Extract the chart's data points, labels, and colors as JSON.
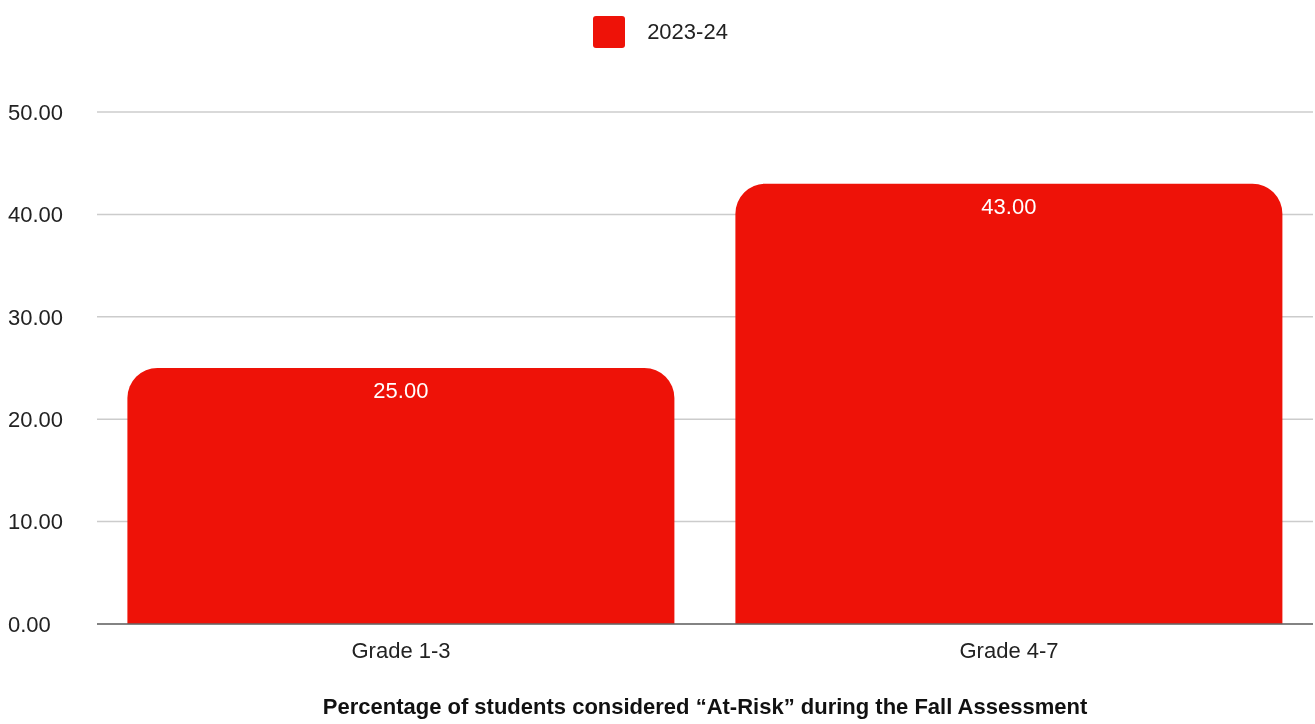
{
  "chart_data": {
    "type": "bar",
    "xlabel": "Percentage of students considered “At-Risk” during the Fall Assessment",
    "categories": [
      "Grade 1-3",
      "Grade 4-7"
    ],
    "series": [
      {
        "name": "2023-24",
        "color": "#ee1208",
        "values": [
          25,
          43
        ],
        "value_labels": [
          "25.00",
          "43.00"
        ]
      }
    ],
    "ylim": [
      0,
      50
    ],
    "yticks": [
      {
        "value": 0,
        "label": "0.00"
      },
      {
        "value": 10,
        "label": "10.00"
      },
      {
        "value": 20,
        "label": "20.00"
      },
      {
        "value": 30,
        "label": "30.00"
      },
      {
        "value": 40,
        "label": "40.00"
      },
      {
        "value": 50,
        "label": "50.00"
      }
    ],
    "grid": "y",
    "legend": "top"
  }
}
